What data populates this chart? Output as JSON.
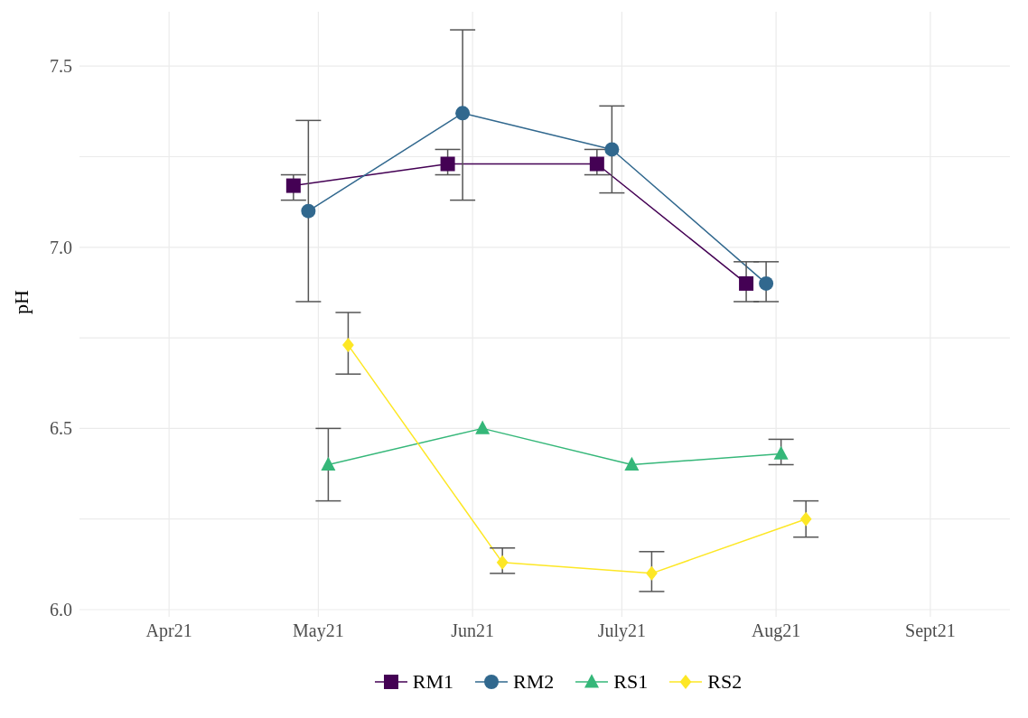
{
  "chart_data": {
    "type": "line",
    "ylabel": "pH",
    "xlim": [
      "2021-03-14",
      "2021-09-17"
    ],
    "xticks": [
      {
        "value": "2021-04-01",
        "label": "Apr21"
      },
      {
        "value": "2021-05-01",
        "label": "May21"
      },
      {
        "value": "2021-06-01",
        "label": "Jun21"
      },
      {
        "value": "2021-07-01",
        "label": "July21"
      },
      {
        "value": "2021-08-01",
        "label": "Aug21"
      },
      {
        "value": "2021-09-01",
        "label": "Sept21"
      }
    ],
    "ylim": [
      5.98,
      7.65
    ],
    "yticks": [
      {
        "value": 6.0,
        "label": "6.0"
      },
      {
        "value": 6.25,
        "label": null
      },
      {
        "value": 6.5,
        "label": "6.5"
      },
      {
        "value": 6.75,
        "label": null
      },
      {
        "value": 7.0,
        "label": "7.0"
      },
      {
        "value": 7.25,
        "label": null
      },
      {
        "value": 7.5,
        "label": "7.5"
      }
    ],
    "grid": true,
    "legend": "bottom",
    "series": [
      {
        "name": "RM1",
        "color": "#440154",
        "marker": "square",
        "x": [
          "2021-04-26",
          "2021-05-27",
          "2021-06-26",
          "2021-07-26"
        ],
        "values": [
          7.17,
          7.23,
          7.23,
          6.9
        ],
        "errors": [
          [
            7.13,
            7.2
          ],
          [
            7.2,
            7.27
          ],
          [
            7.2,
            7.27
          ],
          [
            6.85,
            6.96
          ]
        ]
      },
      {
        "name": "RM2",
        "color": "#31688e",
        "marker": "circle",
        "x": [
          "2021-04-29",
          "2021-05-30",
          "2021-06-29",
          "2021-07-30"
        ],
        "values": [
          7.1,
          7.37,
          7.27,
          6.9
        ],
        "errors": [
          [
            6.85,
            7.35
          ],
          [
            7.13,
            7.6
          ],
          [
            7.15,
            7.39
          ],
          [
            6.85,
            6.96
          ]
        ]
      },
      {
        "name": "RS1",
        "color": "#35b779",
        "marker": "triangle",
        "x": [
          "2021-05-03",
          "2021-06-03",
          "2021-07-03",
          "2021-08-02"
        ],
        "values": [
          6.4,
          6.5,
          6.4,
          6.43
        ],
        "errors": [
          [
            6.3,
            6.5
          ],
          null,
          null,
          [
            6.4,
            6.47
          ]
        ]
      },
      {
        "name": "RS2",
        "color": "#fde725",
        "marker": "diamond",
        "x": [
          "2021-05-07",
          "2021-06-07",
          "2021-07-07",
          "2021-08-07"
        ],
        "values": [
          6.73,
          6.13,
          6.1,
          6.25
        ],
        "errors": [
          [
            6.65,
            6.82
          ],
          [
            6.1,
            6.17
          ],
          [
            6.05,
            6.16
          ],
          [
            6.2,
            6.3
          ]
        ]
      }
    ]
  }
}
